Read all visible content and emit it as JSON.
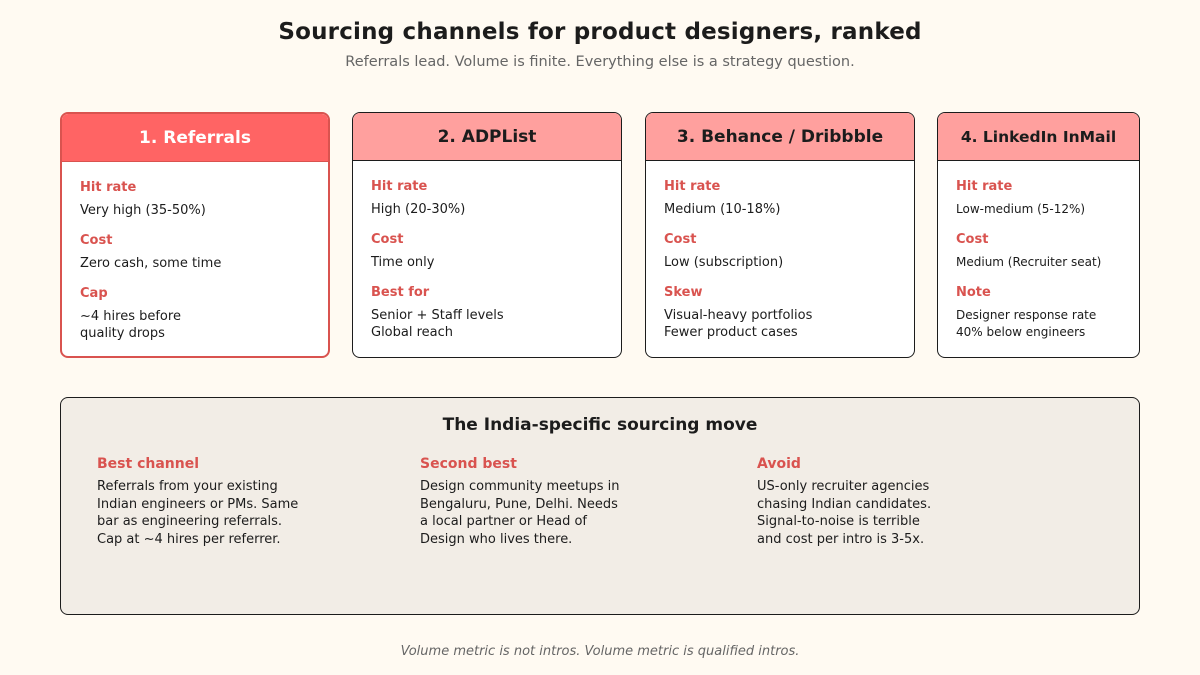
{
  "header": {
    "title": "Sourcing channels for product designers, ranked",
    "subtitle": "Referrals lead. Volume is finite. Everything else is a strategy question."
  },
  "cards": [
    {
      "title": "1. Referrals",
      "fields": [
        {
          "label": "Hit rate",
          "value": "Very high (35-50%)"
        },
        {
          "label": "Cost",
          "value": "Zero cash, some time"
        },
        {
          "label": "Cap",
          "value": "~4 hires before\nquality drops"
        }
      ]
    },
    {
      "title": "2. ADPList",
      "fields": [
        {
          "label": "Hit rate",
          "value": "High (20-30%)"
        },
        {
          "label": "Cost",
          "value": "Time only"
        },
        {
          "label": "Best for",
          "value": "Senior + Staff levels\nGlobal reach"
        }
      ]
    },
    {
      "title": "3. Behance / Dribbble",
      "fields": [
        {
          "label": "Hit rate",
          "value": "Medium (10-18%)"
        },
        {
          "label": "Cost",
          "value": "Low (subscription)"
        },
        {
          "label": "Skew",
          "value": "Visual-heavy portfolios\nFewer product cases"
        }
      ]
    },
    {
      "title": "4. LinkedIn InMail",
      "fields": [
        {
          "label": "Hit rate",
          "value": "Low-medium (5-12%)"
        },
        {
          "label": "Cost",
          "value": "Medium (Recruiter seat)"
        },
        {
          "label": "Note",
          "value": "Designer response rate\n40% below engineers"
        }
      ]
    }
  ],
  "india": {
    "title": "The India-specific sourcing move",
    "columns": [
      {
        "label": "Best channel",
        "text": "Referrals from your existing\nIndian engineers or PMs. Same\nbar as engineering referrals.\nCap at ~4 hires per referrer."
      },
      {
        "label": "Second best",
        "text": "Design community meetups in\nBengaluru, Pune, Delhi. Needs\na local partner or Head of\nDesign who lives there."
      },
      {
        "label": "Avoid",
        "text": "US-only recruiter agencies\nchasing Indian candidates.\nSignal-to-noise is terrible\nand cost per intro is 3-5x."
      }
    ]
  },
  "footer": "Volume metric is not intros. Volume metric is qualified intros.",
  "colors": {
    "accent": "#d9534f",
    "top_card_header": "#ff6464",
    "card_header": "#ffa09e",
    "background": "#fffaf2",
    "panel": "#f2ede6"
  }
}
